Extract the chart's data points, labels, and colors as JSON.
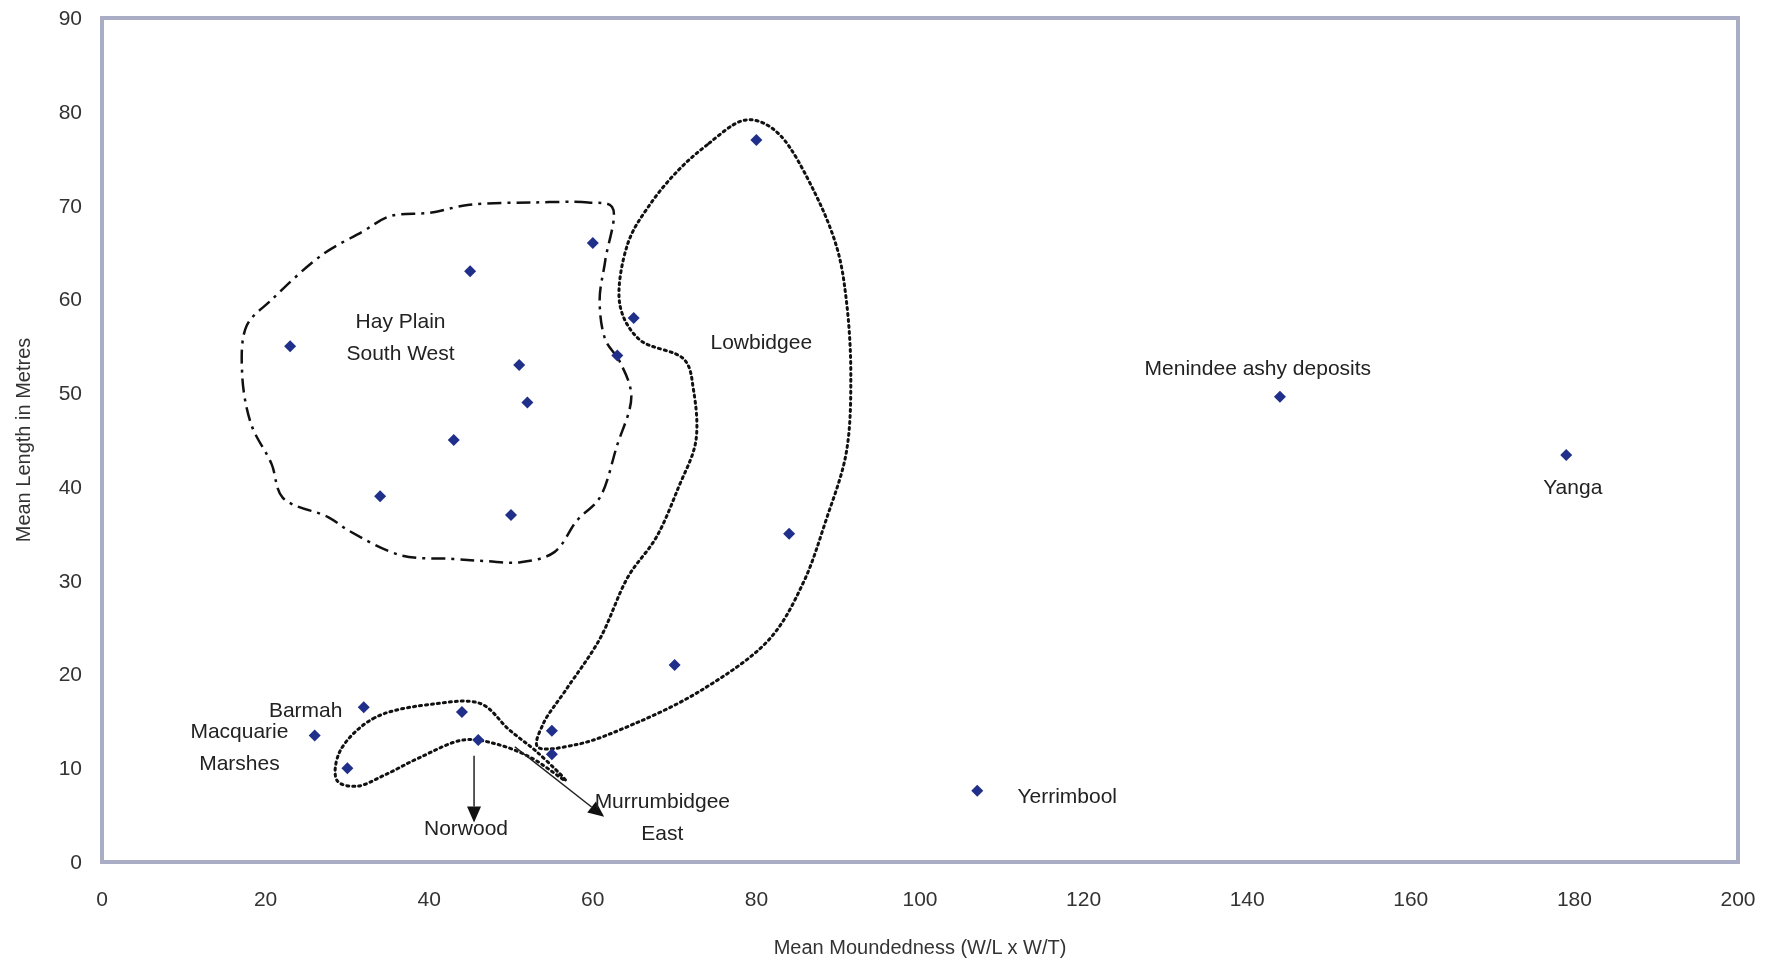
{
  "chart_data": {
    "type": "scatter",
    "xlabel": "Mean Moundedness (W/L x W/T)",
    "ylabel": "Mean Length in Metres",
    "xlim": [
      0,
      200
    ],
    "xticks": [
      0,
      20,
      40,
      60,
      80,
      100,
      120,
      140,
      160,
      180,
      200
    ],
    "ylim": [
      0,
      90
    ],
    "yticks": [
      0,
      10,
      20,
      30,
      40,
      50,
      60,
      70,
      80,
      90
    ],
    "grid": false,
    "marker": "diamond",
    "series": [
      {
        "color": "#1f2f8a",
        "x": [
          23,
          45,
          60,
          65,
          63,
          51,
          52,
          43,
          34,
          50,
          80,
          84,
          70,
          32,
          44,
          26,
          46,
          55,
          55,
          30,
          107,
          144,
          179
        ],
        "values": [
          55,
          63,
          66,
          58,
          54,
          53,
          49,
          45,
          39,
          37,
          77,
          35,
          21,
          16.5,
          16,
          13.5,
          13,
          14,
          11.5,
          10,
          7.6,
          49.6,
          43.4
        ]
      }
    ],
    "annotations": [
      "Hay Plain\nSouth West",
      "Lowbidgee",
      "Menindee ashy deposits",
      "Yanga",
      "Yerrimbool",
      "Barmah",
      "Macquarie\nMarshes",
      "Norwood",
      "Murrumbidgee\nEast"
    ]
  }
}
